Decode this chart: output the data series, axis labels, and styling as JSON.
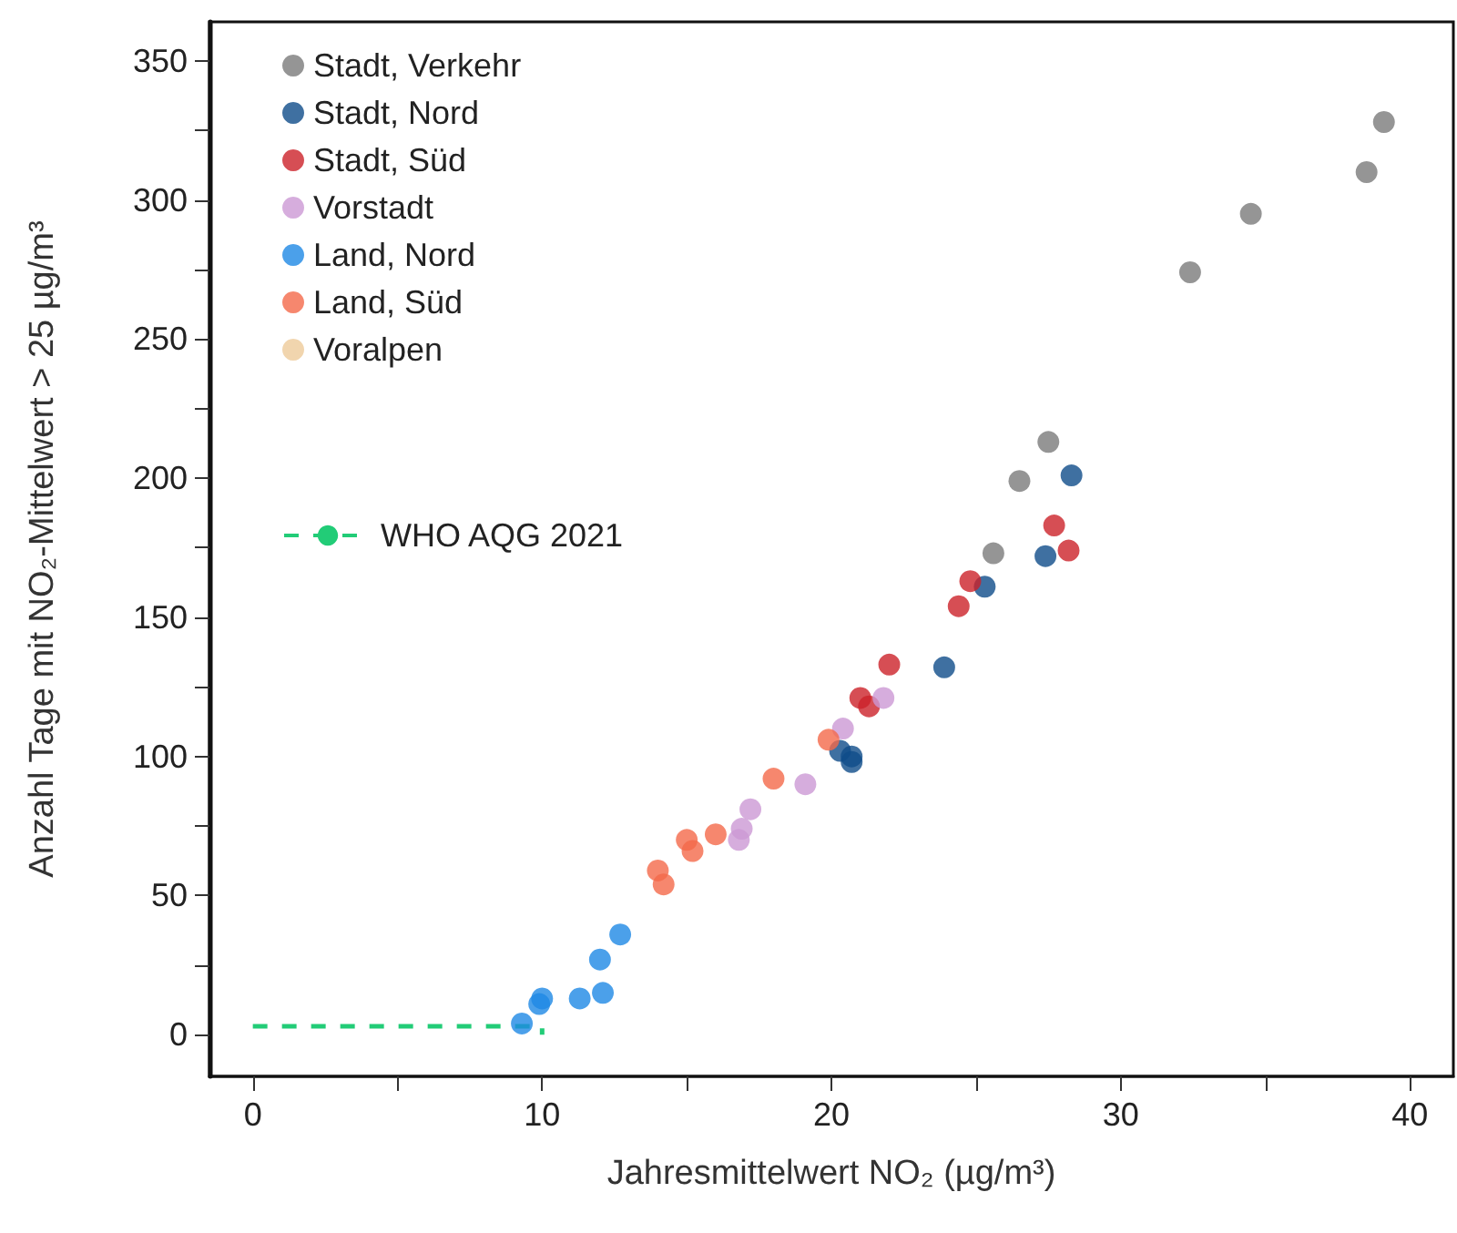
{
  "chart_data": {
    "type": "scatter",
    "xlabel": "Jahresmittelwert NO₂ (µg/m³)",
    "ylabel": "Anzahl Tage mit NO₂-Mittelwert > 25 µg/m³",
    "xlim": [
      -1.5,
      41.5
    ],
    "ylim": [
      -15,
      364
    ],
    "xticks": [
      0,
      {
        "value": 5,
        "label": null
      },
      10,
      {
        "value": 15,
        "label": null
      },
      20,
      {
        "value": 25,
        "label": null
      },
      30,
      {
        "value": 35,
        "label": null
      },
      40
    ],
    "yticks": [
      0,
      {
        "value": 25,
        "label": null
      },
      50,
      {
        "value": 75,
        "label": null
      },
      100,
      {
        "value": 125,
        "label": null
      },
      150,
      {
        "value": 175,
        "label": null
      },
      200,
      {
        "value": 225,
        "label": null
      },
      250,
      {
        "value": 275,
        "label": null
      },
      300,
      {
        "value": 325,
        "label": null
      },
      350
    ],
    "grid": false,
    "legend": "top left",
    "series": [
      {
        "name": "Stadt, Verkehr",
        "color": "#7a7a7a",
        "marker": "circle",
        "x": [
          25.6,
          26.5,
          27.5,
          32.4,
          34.5,
          38.5,
          39.1
        ],
        "values": [
          173,
          199,
          213,
          274,
          295,
          310,
          328
        ]
      },
      {
        "name": "Stadt, Nord",
        "color": "#0f4c8a",
        "marker": "circle",
        "x": [
          20.3,
          20.7,
          20.7,
          23.9,
          25.3,
          27.4,
          28.3
        ],
        "values": [
          102,
          100,
          98,
          132,
          161,
          172,
          201
        ]
      },
      {
        "name": "Stadt, Süd",
        "color": "#cc2229",
        "marker": "circle",
        "x": [
          21.0,
          21.3,
          22.0,
          24.4,
          24.8,
          27.7,
          28.2
        ],
        "values": [
          121,
          118,
          133,
          154,
          163,
          183,
          174
        ]
      },
      {
        "name": "Vorstadt",
        "color": "#cc99d4",
        "marker": "circle",
        "x": [
          16.8,
          16.9,
          17.2,
          19.1,
          20.4,
          21.8
        ],
        "values": [
          70,
          74,
          81,
          90,
          110,
          121
        ]
      },
      {
        "name": "Land, Nord",
        "color": "#1e88e5",
        "marker": "circle",
        "x": [
          9.3,
          9.9,
          10.0,
          11.3,
          12.1,
          12.0,
          12.7
        ],
        "values": [
          4,
          11,
          13,
          13,
          15,
          27,
          36
        ]
      },
      {
        "name": "Land, Süd",
        "color": "#f4694a",
        "marker": "circle",
        "x": [
          14.0,
          14.2,
          15.0,
          15.2,
          16.0,
          18.0,
          19.9
        ],
        "values": [
          59,
          54,
          70,
          66,
          72,
          92,
          106
        ]
      },
      {
        "name": "Voralpen",
        "color": "#eecb9a",
        "marker": "circle"
      },
      {
        "name": "WHO AQG 2021",
        "type": "line",
        "color": "#22cc77",
        "line_style": "dashed",
        "marker": "none",
        "x": [
          0,
          10,
          10
        ],
        "values": [
          3,
          3,
          0
        ]
      }
    ]
  }
}
